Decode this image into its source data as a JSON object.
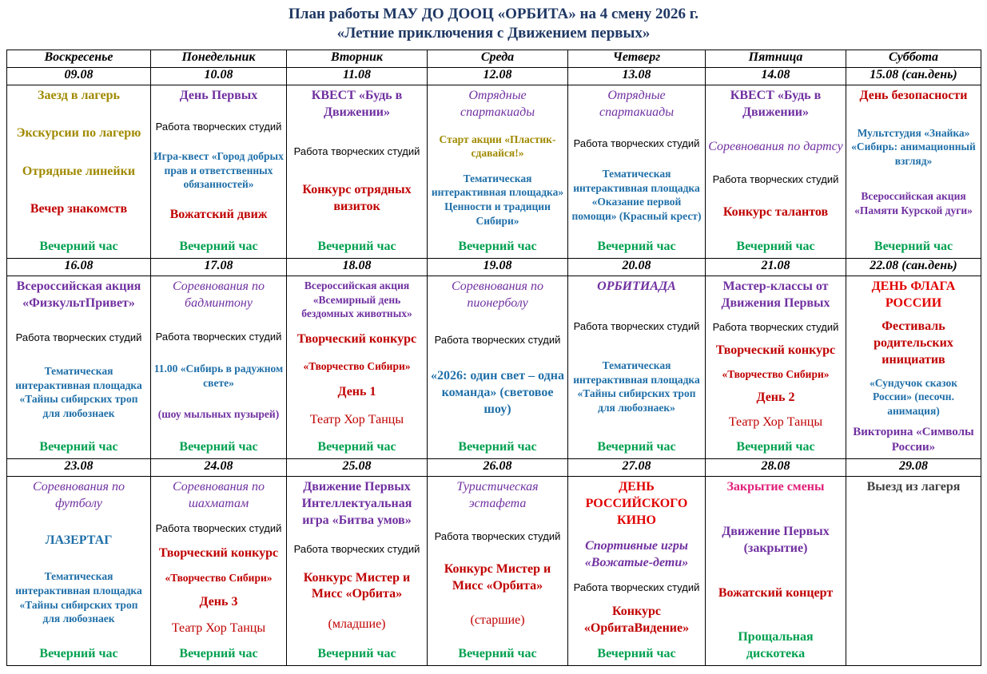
{
  "title": [
    "План работы МАУ ДО ДООЦ «ОРБИТА» на 4 смену 2026 г.",
    "«Летние приключения с Движением первых»"
  ],
  "days": [
    "Воскресенье",
    "Понедельник",
    "Вторник",
    "Среда",
    "Четверг",
    "Пятница",
    "Суббота"
  ],
  "weeks": [
    {
      "dates": [
        "09.08",
        "10.08",
        "11.08",
        "12.08",
        "13.08",
        "14.08",
        "15.08 (сан.день)"
      ],
      "cells": [
        [
          {
            "text": "Заезд в лагерь",
            "color": "#a08a00",
            "font": "bold"
          },
          {
            "text": "Экскурсии по лагерю",
            "color": "#a08a00",
            "font": "bold"
          },
          {
            "text": "Отрядные линейки",
            "color": "#a08a00",
            "font": "bold"
          },
          {
            "text": "Вечер знакомств",
            "color": "#c00000",
            "font": "bold"
          },
          {
            "text": "Вечерний час",
            "color": "#00a050",
            "font": "bold"
          }
        ],
        [
          {
            "text": "День Первых",
            "color": "#7030a0",
            "font": "bold"
          },
          {
            "text": "Работа творческих студий",
            "color": "#000000",
            "font": "normal"
          },
          {
            "text": "Игра-квест «Город добрых прав и ответственных обязанностей»",
            "color": "#1f6fa8",
            "font": "bold-small"
          },
          {
            "text": "Вожатский движ",
            "color": "#c00000",
            "font": "bold"
          },
          {
            "text": "Вечерний час",
            "color": "#00a050",
            "font": "bold"
          }
        ],
        [
          {
            "text": "КВЕСТ «Будь в Движении»",
            "color": "#7030a0",
            "font": "bold"
          },
          {
            "text": "Работа творческих студий",
            "color": "#000000",
            "font": "normal"
          },
          {
            "text": "Конкурс отрядных визиток",
            "color": "#c00000",
            "font": "bold"
          },
          {
            "text": "Вечерний час",
            "color": "#00a050",
            "font": "bold"
          }
        ],
        [
          {
            "text": "Отрядные спартакиады",
            "color": "#7030a0",
            "font": "italic"
          },
          {
            "text": "Старт акции «Пластик-сдавайся!»",
            "color": "#a08a00",
            "font": "bold-small"
          },
          {
            "text": "Тематическая интерактивная площадка» Ценности и традиции Сибири»",
            "color": "#1f6fa8",
            "font": "bold-small"
          },
          {
            "text": "Вечерний час",
            "color": "#00a050",
            "font": "bold"
          }
        ],
        [
          {
            "text": "Отрядные спартакиады",
            "color": "#7030a0",
            "font": "italic"
          },
          {
            "text": "Работа творческих студий",
            "color": "#000000",
            "font": "normal"
          },
          {
            "text": "Тематическая интерактивная площадка «Оказание первой помощи» (Красный крест)",
            "color": "#1f6fa8",
            "font": "bold-small"
          },
          {
            "text": "Вечерний час",
            "color": "#00a050",
            "font": "bold"
          }
        ],
        [
          {
            "text": "КВЕСТ «Будь в Движении»",
            "color": "#7030a0",
            "font": "bold"
          },
          {
            "text": "Соревнования по дартсу",
            "color": "#7030a0",
            "font": "italic"
          },
          {
            "text": "Работа творческих студий",
            "color": "#000000",
            "font": "normal"
          },
          {
            "text": "Конкурс талантов",
            "color": "#c00000",
            "font": "bold"
          },
          {
            "text": "Вечерний час",
            "color": "#00a050",
            "font": "bold"
          }
        ],
        [
          {
            "text": "День безопасности",
            "color": "#c00000",
            "font": "bold"
          },
          {
            "text": "Мультстудия «Знайка» «Сибирь: анимационный взгляд»",
            "color": "#1f6fa8",
            "font": "bold-small"
          },
          {
            "text": "Всероссийская акция «Памяти Курской дуги»",
            "color": "#7030a0",
            "font": "bold-small"
          },
          {
            "text": "Вечерний час",
            "color": "#00a050",
            "font": "bold"
          }
        ]
      ]
    },
    {
      "dates": [
        "16.08",
        "17.08",
        "18.08",
        "19.08",
        "20.08",
        "21.08",
        "22.08 (сан.день)"
      ],
      "cells": [
        [
          {
            "text": "Всероссийская акция «ФизкультПривет»",
            "color": "#7030a0",
            "font": "bold"
          },
          {
            "text": "Работа творческих студий",
            "color": "#000000",
            "font": "normal"
          },
          {
            "text": "Тематическая интерактивная площадка «Тайны сибирских троп для любознаек",
            "color": "#1f6fa8",
            "font": "bold-small"
          },
          {
            "text": "Вечерний час",
            "color": "#00a050",
            "font": "bold"
          }
        ],
        [
          {
            "text": "Соревнования по бадминтону",
            "color": "#7030a0",
            "font": "italic"
          },
          {
            "text": "Работа творческих студий",
            "color": "#000000",
            "font": "normal"
          },
          {
            "text": "11.00 «Сибирь в радужном свете»",
            "color": "#1f6fa8",
            "font": "bold-small"
          },
          {
            "text": "(шоу мыльных пузырей)",
            "color": "#7030a0",
            "font": "bold-small"
          },
          {
            "text": "Вечерний час",
            "color": "#00a050",
            "font": "bold"
          }
        ],
        [
          {
            "text": "Всероссийская акция «Всемирный день бездомных животных»",
            "color": "#7030a0",
            "font": "bold-small"
          },
          {
            "text": "Творческий конкурс",
            "color": "#c00000",
            "font": "bold"
          },
          {
            "text": "«Творчество Сибири»",
            "color": "#c00000",
            "font": "bold-small"
          },
          {
            "text": "День 1",
            "color": "#c00000",
            "font": "bold"
          },
          {
            "text": "Театр Хор Танцы",
            "color": "#c00000",
            "font": "plain"
          },
          {
            "text": "Вечерний час",
            "color": "#00a050",
            "font": "bold"
          }
        ],
        [
          {
            "text": "Соревнования по пионерболу",
            "color": "#7030a0",
            "font": "italic"
          },
          {
            "text": "Работа творческих студий",
            "color": "#000000",
            "font": "normal"
          },
          {
            "text": "«2026: один свет – одна команда» (световое шоу)",
            "color": "#1f6fa8",
            "font": "bold"
          },
          {
            "text": "Вечерний час",
            "color": "#00a050",
            "font": "bold"
          }
        ],
        [
          {
            "text": "ОРБИТИАДА",
            "color": "#7030a0",
            "font": "bold-italic"
          },
          {
            "text": "Работа творческих студий",
            "color": "#000000",
            "font": "normal"
          },
          {
            "text": "Тематическая интерактивная площадка «Тайны сибирских троп для любознаек»",
            "color": "#1f6fa8",
            "font": "bold-small"
          },
          {
            "text": "Вечерний час",
            "color": "#00a050",
            "font": "bold"
          }
        ],
        [
          {
            "text": "Мастер-классы от Движения Первых",
            "color": "#7030a0",
            "font": "bold"
          },
          {
            "text": "Работа творческих студий",
            "color": "#000000",
            "font": "normal"
          },
          {
            "text": "Творческий конкурс",
            "color": "#c00000",
            "font": "bold"
          },
          {
            "text": "«Творчество Сибири»",
            "color": "#c00000",
            "font": "bold-small"
          },
          {
            "text": "День 2",
            "color": "#c00000",
            "font": "bold"
          },
          {
            "text": "Театр Хор Танцы",
            "color": "#c00000",
            "font": "plain"
          },
          {
            "text": "Вечерний час",
            "color": "#00a050",
            "font": "bold"
          }
        ],
        [
          {
            "text": "ДЕНЬ ФЛАГА РОССИИ",
            "color": "#e00000",
            "font": "bold"
          },
          {
            "text": "Фестиваль родительских инициатив",
            "color": "#c00000",
            "font": "bold"
          },
          {
            "text": "«Сундучок сказок России» (песочн. анимация)",
            "color": "#1f6fa8",
            "font": "bold-small"
          },
          {
            "text": "Викторина «Символы России»",
            "color": "#7030a0",
            "font": "bold-mid"
          }
        ]
      ]
    },
    {
      "dates": [
        "23.08",
        "24.08",
        "25.08",
        "26.08",
        "27.08",
        "28.08",
        "29.08"
      ],
      "cells": [
        [
          {
            "text": "Соревнования по футболу",
            "color": "#7030a0",
            "font": "italic"
          },
          {
            "text": "ЛАЗЕРТАГ",
            "color": "#1f6fa8",
            "font": "bold"
          },
          {
            "text": "Тематическая интерактивная площадка «Тайны сибирских троп для любознаек",
            "color": "#1f6fa8",
            "font": "bold-small"
          },
          {
            "text": "Вечерний час",
            "color": "#00a050",
            "font": "bold"
          }
        ],
        [
          {
            "text": "Соревнования по шахматам",
            "color": "#7030a0",
            "font": "italic"
          },
          {
            "text": "Работа творческих студий",
            "color": "#000000",
            "font": "normal"
          },
          {
            "text": "Творческий конкурс",
            "color": "#c00000",
            "font": "bold"
          },
          {
            "text": "«Творчество Сибири»",
            "color": "#c00000",
            "font": "bold-small"
          },
          {
            "text": "День 3",
            "color": "#c00000",
            "font": "bold"
          },
          {
            "text": "Театр Хор Танцы",
            "color": "#c00000",
            "font": "plain"
          },
          {
            "text": "Вечерний час",
            "color": "#00a050",
            "font": "bold"
          }
        ],
        [
          {
            "text": "Движение Первых Интеллектуальная игра «Битва умов»",
            "color": "#7030a0",
            "font": "bold"
          },
          {
            "text": "Работа творческих студий",
            "color": "#000000",
            "font": "normal"
          },
          {
            "text": "Конкурс Мистер и Мисс «Орбита»",
            "color": "#c00000",
            "font": "bold"
          },
          {
            "text": "(младшие)",
            "color": "#c00000",
            "font": "plain"
          },
          {
            "text": "Вечерний час",
            "color": "#00a050",
            "font": "bold"
          }
        ],
        [
          {
            "text": "Туристическая эстафета",
            "color": "#7030a0",
            "font": "italic"
          },
          {
            "text": "Работа творческих студий",
            "color": "#000000",
            "font": "normal"
          },
          {
            "text": "Конкурс Мистер и Мисс «Орбита»",
            "color": "#c00000",
            "font": "bold"
          },
          {
            "text": "(старшие)",
            "color": "#c00000",
            "font": "plain"
          },
          {
            "text": "Вечерний час",
            "color": "#00a050",
            "font": "bold"
          }
        ],
        [
          {
            "text": "ДЕНЬ РОССИЙСКОГО КИНО",
            "color": "#e00000",
            "font": "bold"
          },
          {
            "text": "Спортивные игры «Вожатые-дети»",
            "color": "#7030a0",
            "font": "bold-italic"
          },
          {
            "text": "Работа творческих студий",
            "color": "#000000",
            "font": "normal"
          },
          {
            "text": "Конкурс «ОрбитаВидение»",
            "color": "#c00000",
            "font": "bold"
          },
          {
            "text": "Вечерний час",
            "color": "#00a050",
            "font": "bold"
          }
        ],
        [
          {
            "text": "Закрытие смены",
            "color": "#e0207a",
            "font": "bold"
          },
          {
            "text": "Движение Первых (закрытие)",
            "color": "#7030a0",
            "font": "bold"
          },
          {
            "text": "Вожатский концерт",
            "color": "#c00000",
            "font": "bold"
          },
          {
            "text": "Прощальная дискотека",
            "color": "#00a050",
            "font": "bold"
          }
        ],
        [
          {
            "text": "Выезд из лагеря",
            "color": "#404040",
            "font": "bold"
          }
        ]
      ]
    }
  ]
}
